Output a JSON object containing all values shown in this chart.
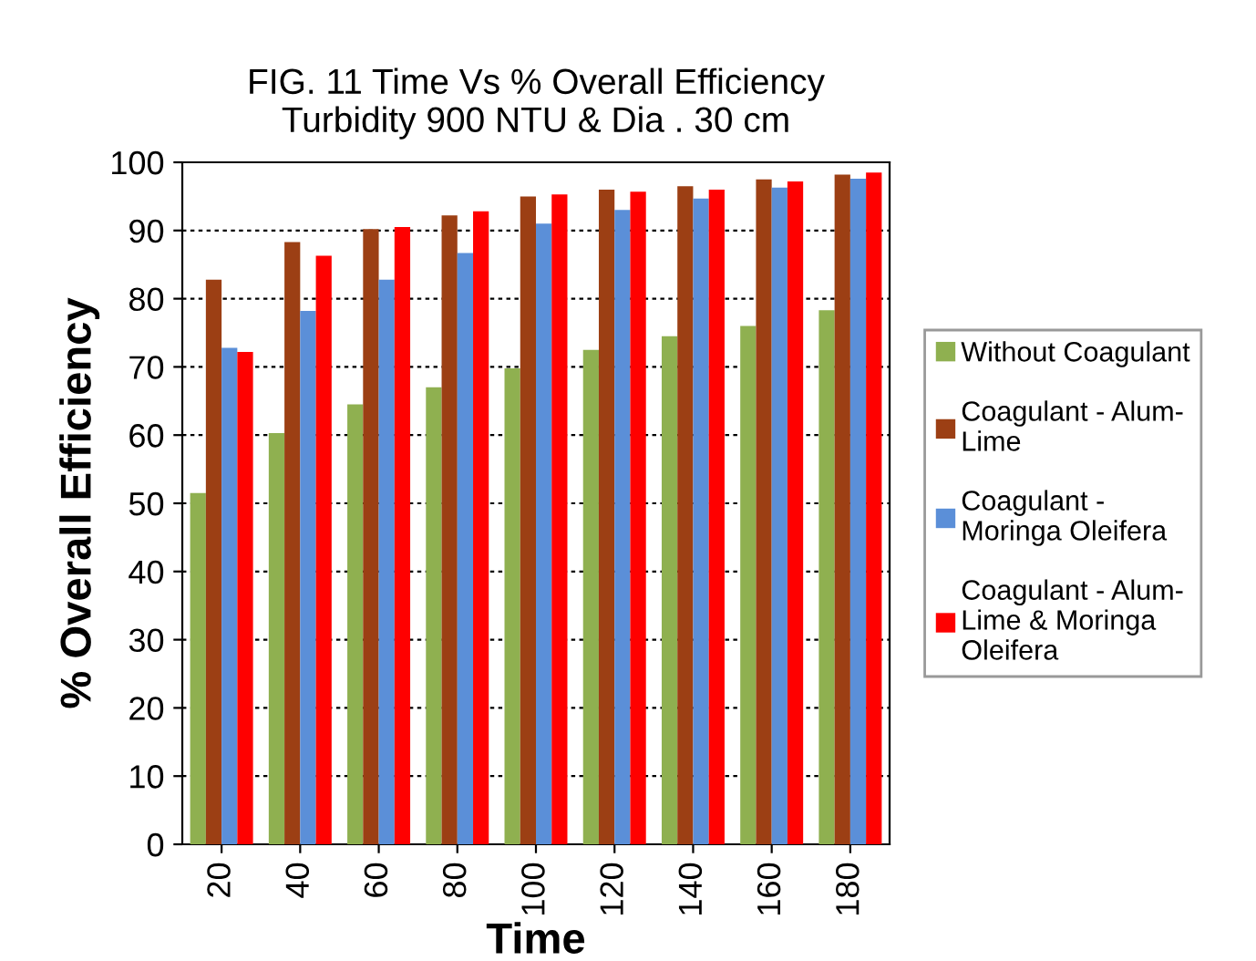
{
  "chart_data": {
    "type": "bar",
    "title": "FIG. 11 Time Vs % Overall Efficiency\nTurbidity 900 NTU & Dia . 30 cm",
    "xlabel": "Time",
    "ylabel": "% Overall Efficiency",
    "categories": [
      "20",
      "40",
      "60",
      "80",
      "100",
      "120",
      "140",
      "160",
      "180"
    ],
    "series": [
      {
        "name": "Without Coagulant",
        "color": "#8fb050",
        "values": [
          51.5,
          60.3,
          64.5,
          67,
          69.8,
          72.5,
          74.5,
          76,
          78.3
        ]
      },
      {
        "name": "Coagulant - Alum-\nLime",
        "color": "#9c3f14",
        "values": [
          82.8,
          88.3,
          90.2,
          92.2,
          95,
          96,
          96.5,
          97.5,
          98.2
        ]
      },
      {
        "name": "Coagulant -\nMoringa Oleifera",
        "color": "#5b8fd8",
        "values": [
          72.8,
          78.2,
          82.8,
          86.7,
          91,
          93,
          94.7,
          96.3,
          97.6
        ]
      },
      {
        "name": "Coagulant - Alum-\nLime & Moringa\nOleifera",
        "color": "#ff0000",
        "values": [
          72.2,
          86.3,
          90.5,
          92.8,
          95.3,
          95.7,
          96,
          97.2,
          98.5
        ]
      }
    ],
    "ylim": [
      0,
      100
    ],
    "yticks": [
      0,
      10,
      20,
      30,
      40,
      50,
      60,
      70,
      80,
      90,
      100
    ],
    "grid": "y",
    "legend": "right"
  }
}
